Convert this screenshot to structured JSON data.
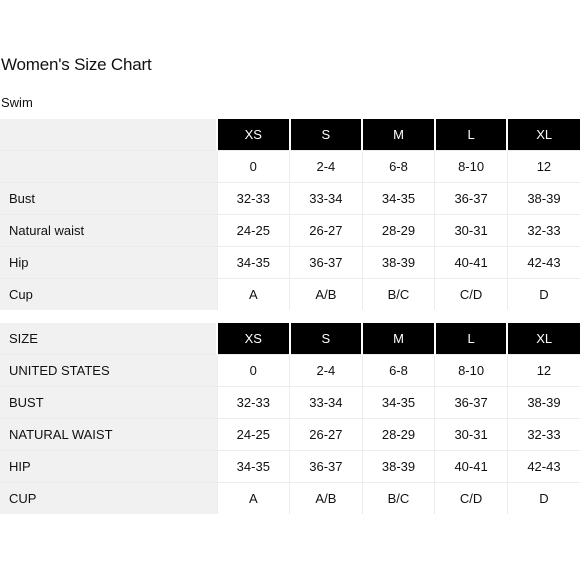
{
  "title": "Women's Size Chart",
  "section": "Swim",
  "table1": {
    "header_label": "",
    "sizes": [
      "XS",
      "S",
      "M",
      "L",
      "XL"
    ],
    "rows": [
      {
        "label": "",
        "values": [
          "0",
          "2-4",
          "6-8",
          "8-10",
          "12"
        ]
      },
      {
        "label": "Bust",
        "values": [
          "32-33",
          "33-34",
          "34-35",
          "36-37",
          "38-39"
        ]
      },
      {
        "label": "Natural waist",
        "values": [
          "24-25",
          "26-27",
          "28-29",
          "30-31",
          "32-33"
        ]
      },
      {
        "label": "Hip",
        "values": [
          "34-35",
          "36-37",
          "38-39",
          "40-41",
          "42-43"
        ]
      },
      {
        "label": "Cup",
        "values": [
          "A",
          "A/B",
          "B/C",
          "C/D",
          "D"
        ]
      }
    ]
  },
  "table2": {
    "header_label": "SIZE",
    "sizes": [
      "XS",
      "S",
      "M",
      "L",
      "XL"
    ],
    "rows": [
      {
        "label": "UNITED STATES",
        "values": [
          "0",
          "2-4",
          "6-8",
          "8-10",
          "12"
        ]
      },
      {
        "label": "BUST",
        "values": [
          "32-33",
          "33-34",
          "34-35",
          "36-37",
          "38-39"
        ]
      },
      {
        "label": "NATURAL WAIST",
        "values": [
          "24-25",
          "26-27",
          "28-29",
          "30-31",
          "32-33"
        ]
      },
      {
        "label": "HIP",
        "values": [
          "34-35",
          "36-37",
          "38-39",
          "40-41",
          "42-43"
        ]
      },
      {
        "label": "CUP",
        "values": [
          "A",
          "A/B",
          "B/C",
          "C/D",
          "D"
        ]
      }
    ]
  }
}
